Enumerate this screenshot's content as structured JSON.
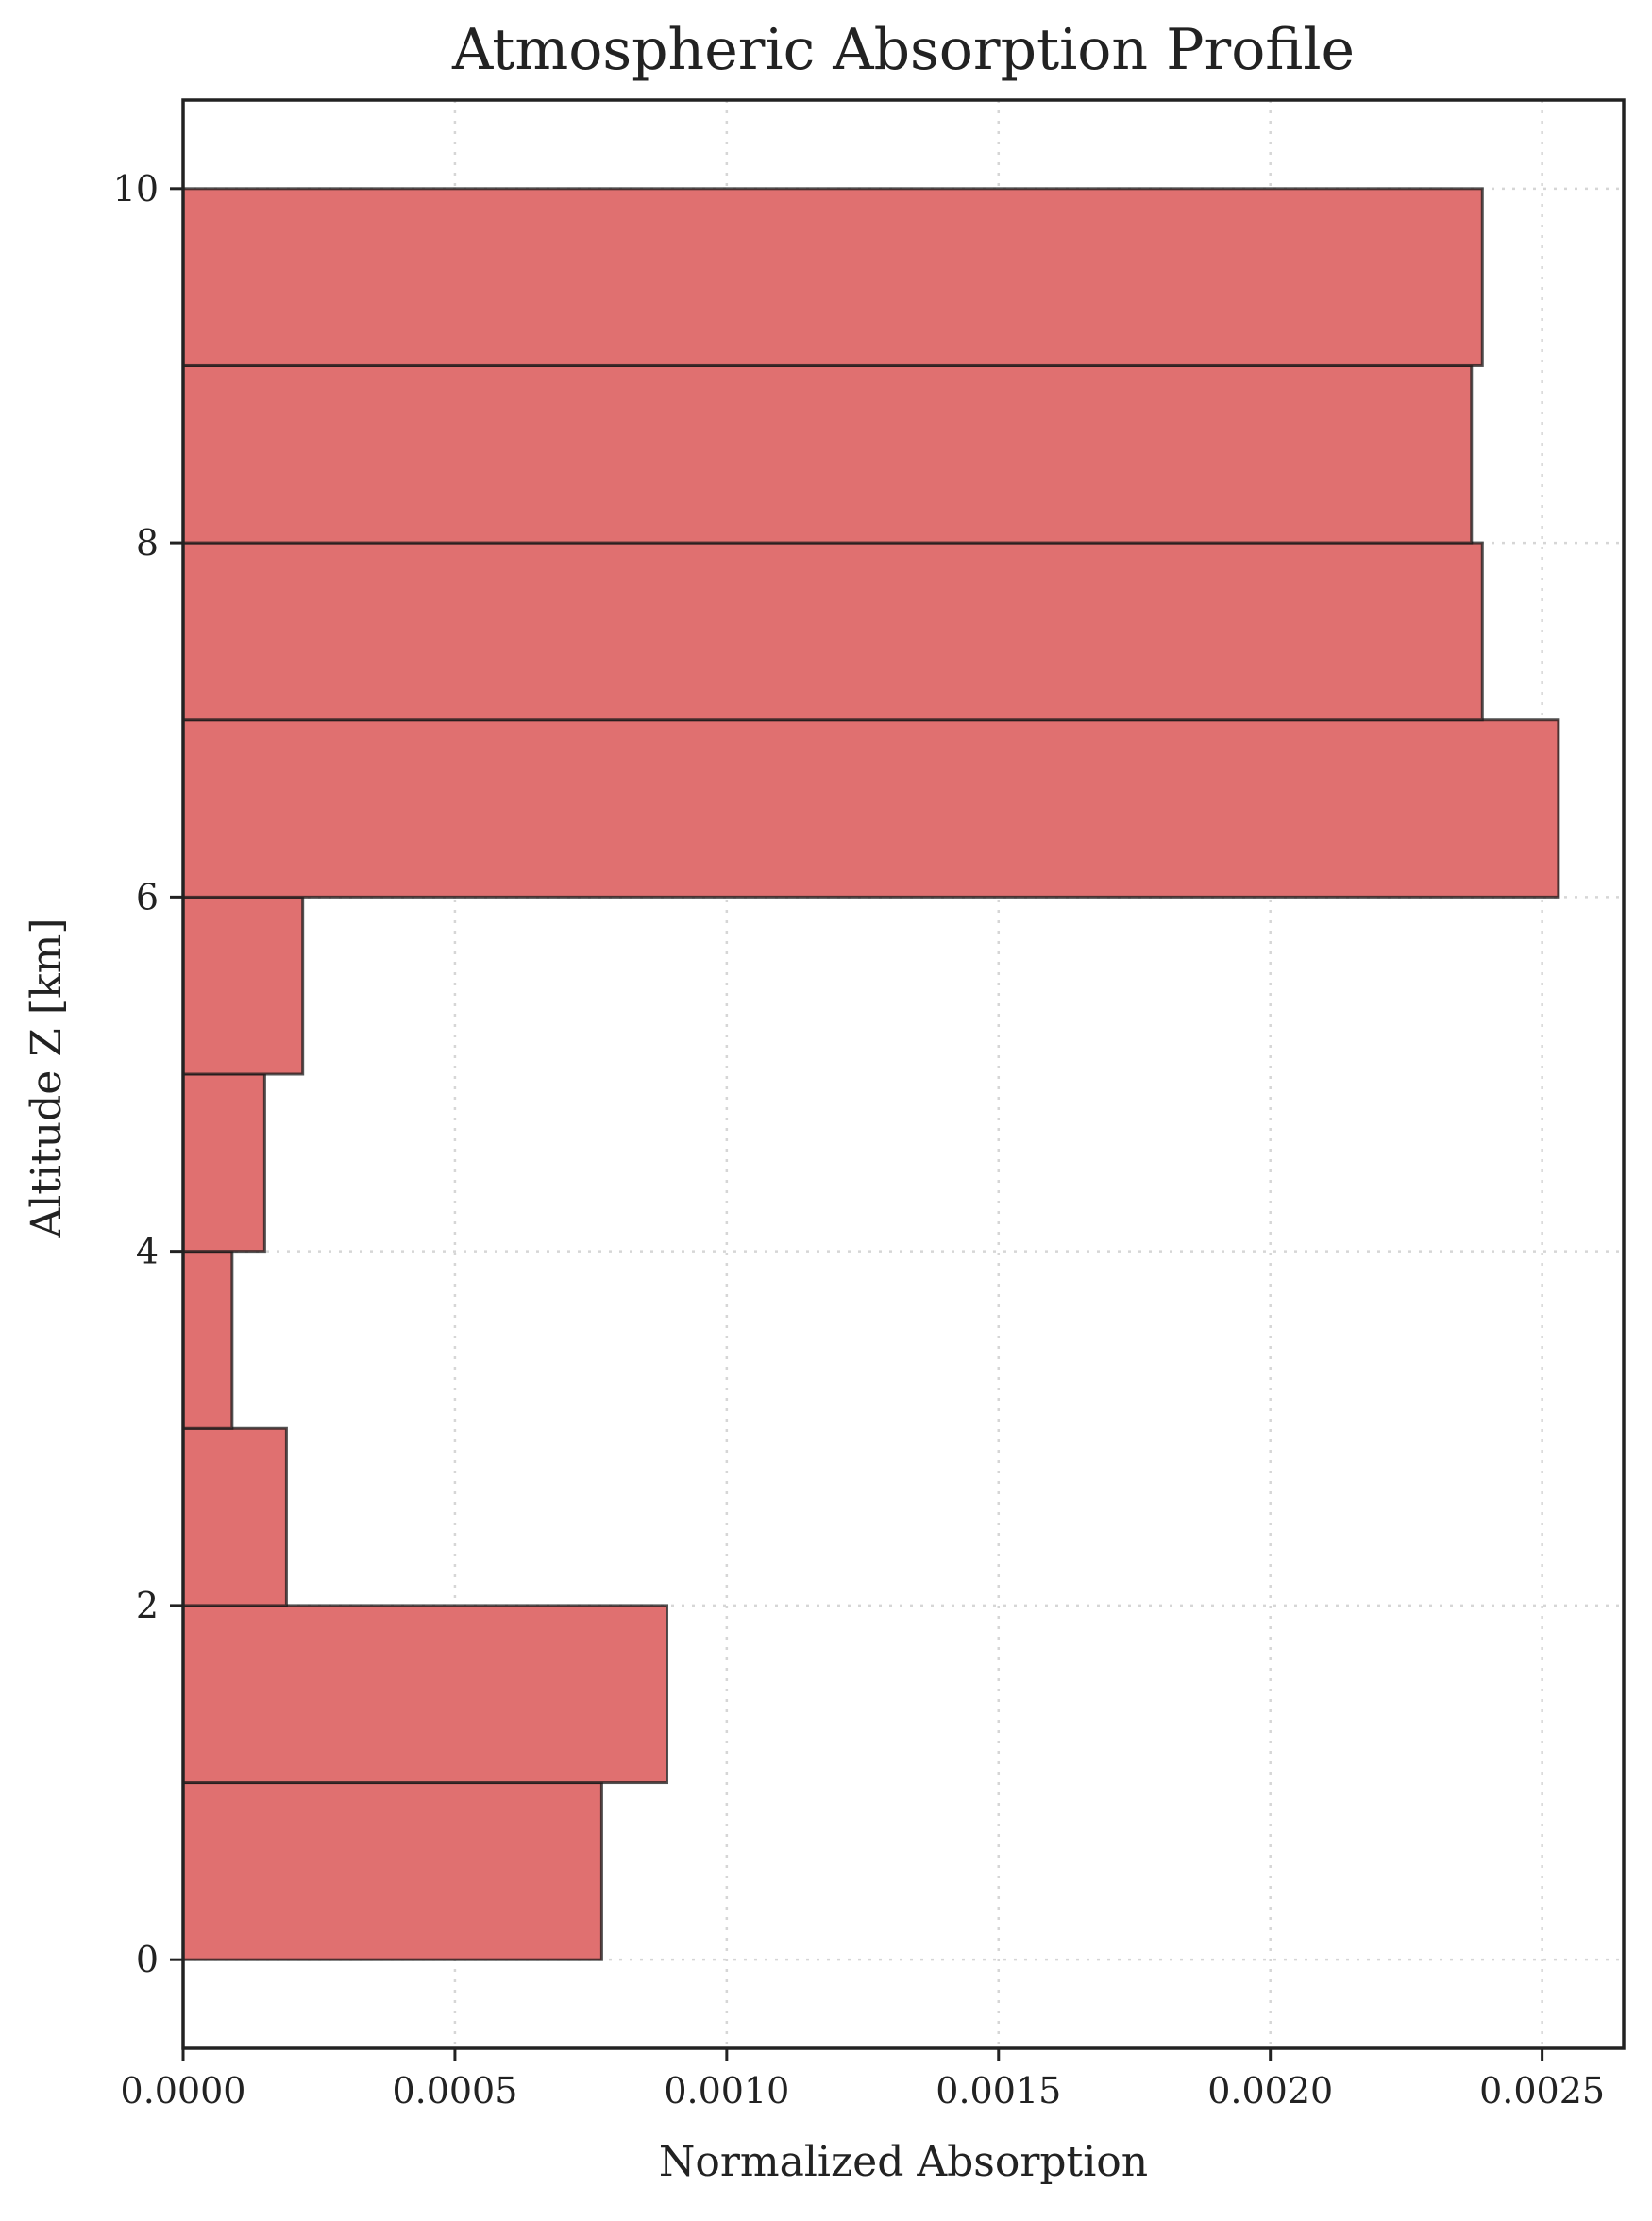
{
  "chart_data": {
    "type": "bar",
    "orientation": "horizontal",
    "title": "Atmospheric Absorption Profile",
    "xlabel": "Normalized Absorption",
    "ylabel": "Altitude Z [km]",
    "xlim": [
      0,
      0.00265
    ],
    "ylim": [
      -0.5,
      10.5
    ],
    "x_ticks": [
      0,
      0.0005,
      0.001,
      0.0015,
      0.002,
      0.0025
    ],
    "x_tick_labels": [
      "0.0000",
      "0.0005",
      "0.0010",
      "0.0015",
      "0.0020",
      "0.0025"
    ],
    "y_ticks": [
      0,
      2,
      4,
      6,
      8,
      10
    ],
    "y_tick_labels": [
      "0",
      "2",
      "4",
      "6",
      "8",
      "10"
    ],
    "grid": true,
    "bar_color": "#e07070",
    "bins": [
      {
        "z_start": 0,
        "z_end": 1,
        "value": 0.00077
      },
      {
        "z_start": 1,
        "z_end": 2,
        "value": 0.00089
      },
      {
        "z_start": 2,
        "z_end": 3,
        "value": 0.00019
      },
      {
        "z_start": 3,
        "z_end": 4,
        "value": 9e-05
      },
      {
        "z_start": 4,
        "z_end": 5,
        "value": 0.00015
      },
      {
        "z_start": 5,
        "z_end": 6,
        "value": 0.00022
      },
      {
        "z_start": 6,
        "z_end": 7,
        "value": 0.00253
      },
      {
        "z_start": 7,
        "z_end": 8,
        "value": 0.00239
      },
      {
        "z_start": 8,
        "z_end": 9,
        "value": 0.00237
      },
      {
        "z_start": 9,
        "z_end": 10,
        "value": 0.00239
      }
    ]
  }
}
